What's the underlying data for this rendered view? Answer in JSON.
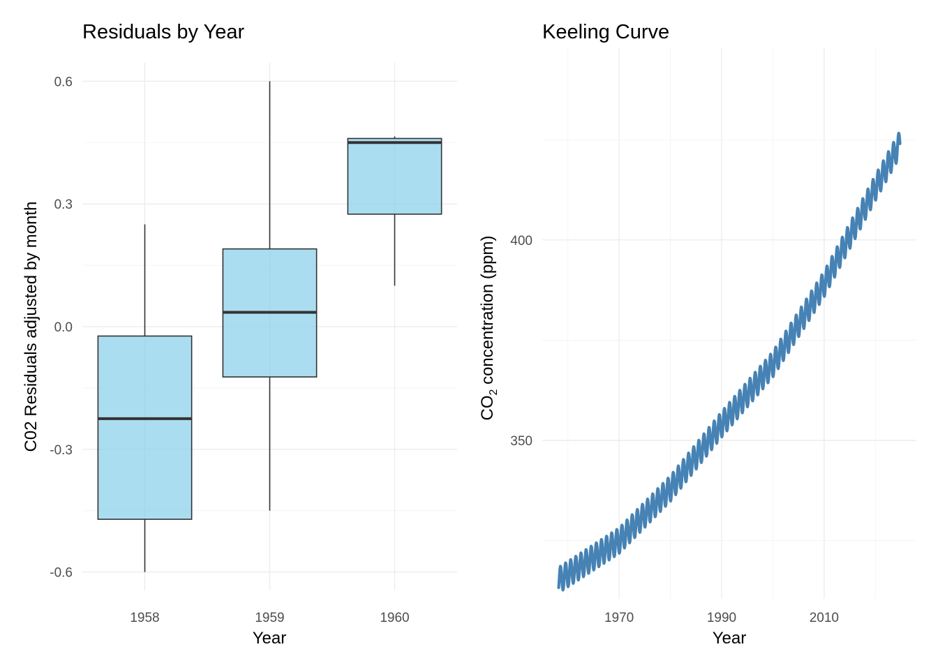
{
  "chart_data": [
    {
      "type": "boxplot",
      "title": "Residuals by Year",
      "xlabel": "Year",
      "ylabel": "C02 Residuals adjusted by month",
      "categories": [
        "1958",
        "1959",
        "1960"
      ],
      "boxes": [
        {
          "category": "1958",
          "whisker_low": -0.6,
          "q1": -0.471,
          "median": -0.225,
          "q3": -0.023,
          "whisker_high": 0.25
        },
        {
          "category": "1959",
          "whisker_low": -0.45,
          "q1": -0.123,
          "median": 0.035,
          "q3": 0.19,
          "whisker_high": 0.6
        },
        {
          "category": "1960",
          "whisker_low": 0.1,
          "q1": 0.275,
          "median": 0.45,
          "q3": 0.46,
          "whisker_high": 0.465
        }
      ],
      "yticks": [
        -0.6,
        -0.3,
        0.0,
        0.3,
        0.6
      ],
      "ytick_labels": [
        "-0.6",
        "-0.3",
        "0.0",
        "0.3",
        "0.6"
      ],
      "ylim": [
        -0.645,
        0.645
      ],
      "box_fill": "#87ceeb",
      "box_fill_opacity": 0.7,
      "box_stroke": "#333333",
      "grid": true
    },
    {
      "type": "line",
      "title": "Keeling Curve",
      "xlabel": "Year",
      "ylabel": {
        "prefix": "CO",
        "subscript": "2",
        "suffix": " concentration (ppm)"
      },
      "x_range": [
        1958.2,
        2024.8
      ],
      "xlim": [
        1955.0,
        2028.0
      ],
      "ylim": [
        310.5,
        448.0
      ],
      "xticks": [
        1970,
        1990,
        2010
      ],
      "xtick_labels": [
        "1970",
        "1990",
        "2010"
      ],
      "yticks": [
        350,
        400
      ],
      "ytick_labels": [
        "350",
        "400"
      ],
      "trend_anchors": {
        "x": [
          1958,
          1970,
          1980,
          1990,
          2000,
          2010,
          2020,
          2024.8
        ],
        "y": [
          315.0,
          325.0,
          338.0,
          354.0,
          369.0,
          389.0,
          413.0,
          424.0
        ]
      },
      "seasonal_amplitude": 3.2,
      "line_color": "#4682b4",
      "grid": true
    }
  ]
}
